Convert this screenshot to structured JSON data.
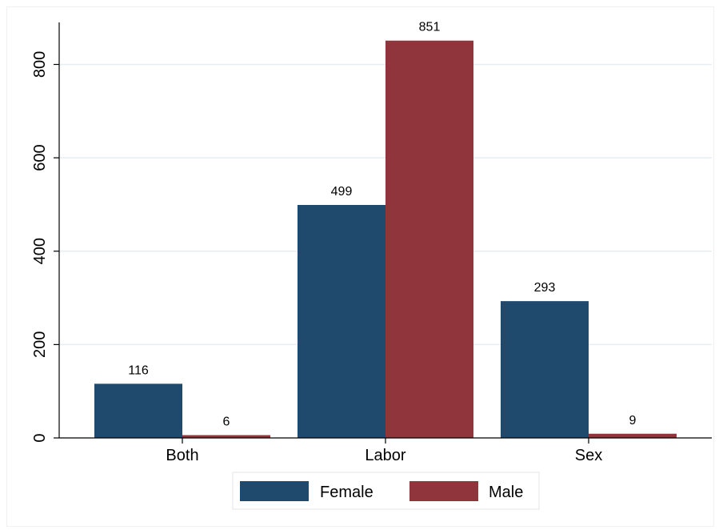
{
  "chart_data": {
    "type": "bar",
    "title": "",
    "xlabel": "",
    "ylabel": "",
    "categories": [
      "Both",
      "Labor",
      "Sex"
    ],
    "series": [
      {
        "name": "Female",
        "values": [
          116,
          499,
          293
        ],
        "color": "#1f4a6e"
      },
      {
        "name": "Male",
        "values": [
          6,
          851,
          9
        ],
        "color": "#8f353b"
      }
    ],
    "ylim": [
      0,
      890
    ],
    "yticks": [
      0,
      200,
      400,
      600,
      800
    ],
    "ytick_labels": [
      "0",
      "200",
      "400",
      "600",
      "800"
    ],
    "grid": true,
    "legend_position": "bottom",
    "grid_color": "#e6eef2"
  }
}
